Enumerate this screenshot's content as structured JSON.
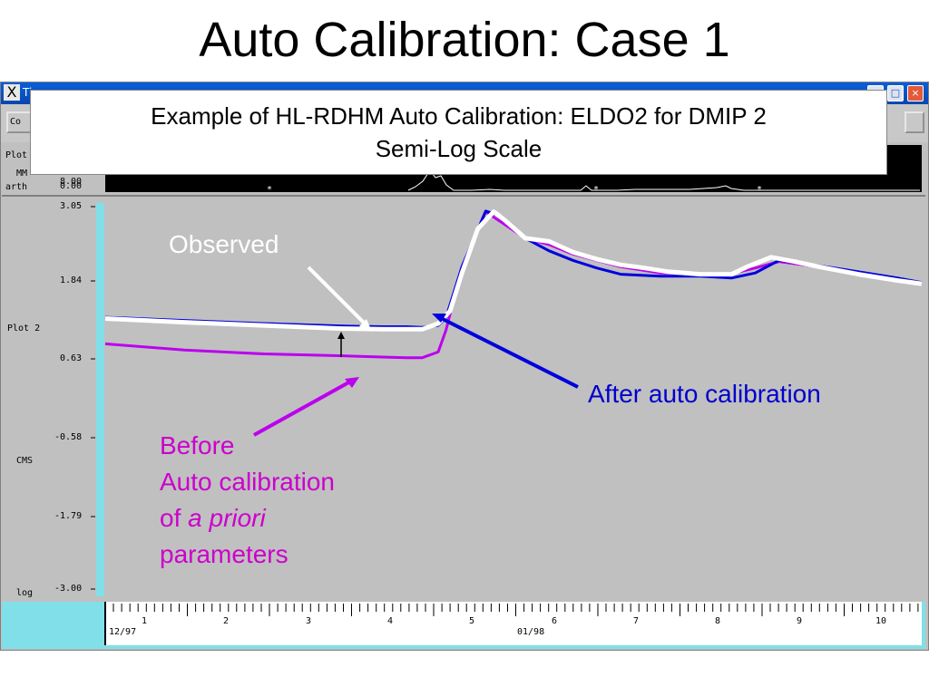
{
  "slide": {
    "title": "Auto Calibration: Case 1",
    "caption_line1": "Example of HL-RDHM Auto Calibration: ELDO2  for DMIP 2",
    "caption_line2": "Semi-Log Scale"
  },
  "window": {
    "title": "Ti",
    "toolbar_button": "Co",
    "minimize_glyph": "_",
    "maximize_glyph": "□",
    "close_glyph": "×"
  },
  "top_strip": {
    "label_line1": "Plot",
    "label_line2": "MM",
    "label_line3": "arth",
    "tick_top": "8.00",
    "tick_bottom": "0.00"
  },
  "plot": {
    "label": "Plot 2",
    "units": "CMS",
    "scale": "log",
    "yticks": [
      "3.05",
      "1.84",
      "0.63",
      "-0.58",
      "-1.79",
      "-3.00"
    ],
    "xticks": [
      "1",
      "2",
      "3",
      "4",
      "5",
      "6",
      "7",
      "8",
      "9",
      "10"
    ],
    "date_start": "12/97",
    "date_mid": "01/98"
  },
  "annotations": {
    "observed": "Observed",
    "after": "After auto calibration",
    "before_line1": "Before",
    "before_line2": "Auto calibration",
    "before_line3a": "of ",
    "before_line3b": "a priori",
    "before_line4": "parameters"
  },
  "colors": {
    "observed": "#ffffff",
    "after": "#0000dd",
    "before": "#bb00ee",
    "plot_bg": "#c0c0c0",
    "cyan_bar": "#80dfe8"
  },
  "chart_data": {
    "type": "line",
    "ylabel": "CMS",
    "xlim": [
      0,
      10.3
    ],
    "ylim": [
      -3.0,
      3.05
    ],
    "series": [
      {
        "name": "Observed",
        "x": [
          0,
          1,
          2,
          3,
          3.5,
          4.0,
          4.2,
          4.35,
          4.5,
          4.7,
          4.9,
          5.0,
          5.3,
          5.6,
          5.9,
          6.2,
          6.5,
          6.8,
          7.1,
          7.5,
          7.9,
          8.1,
          8.4,
          8.7,
          9.0,
          9.5,
          10.0,
          10.3
        ],
        "y": [
          1.28,
          1.22,
          1.17,
          1.12,
          1.11,
          1.11,
          1.2,
          1.4,
          2.0,
          2.7,
          2.97,
          2.88,
          2.55,
          2.5,
          2.33,
          2.22,
          2.13,
          2.08,
          2.02,
          1.98,
          1.98,
          2.1,
          2.25,
          2.18,
          2.1,
          1.98,
          1.88,
          1.83
        ]
      },
      {
        "name": "After auto calibration",
        "x": [
          0,
          1,
          2,
          3,
          3.5,
          3.8,
          4.0,
          4.2,
          4.3,
          4.5,
          4.8,
          5.0,
          5.3,
          5.6,
          5.9,
          6.2,
          6.5,
          7.0,
          7.5,
          7.9,
          8.2,
          8.5,
          8.8,
          9.2,
          9.6,
          10.0,
          10.3
        ],
        "y": [
          1.3,
          1.25,
          1.2,
          1.16,
          1.15,
          1.15,
          1.14,
          1.17,
          1.3,
          2.1,
          2.98,
          2.9,
          2.55,
          2.35,
          2.2,
          2.08,
          1.98,
          1.95,
          1.95,
          1.92,
          2.0,
          2.2,
          2.15,
          2.08,
          2.0,
          1.92,
          1.85
        ]
      },
      {
        "name": "Before Auto calibration of a priori parameters",
        "x": [
          0,
          1,
          2,
          3,
          3.5,
          3.8,
          4.0,
          4.2,
          4.3,
          4.5,
          4.8,
          5.0,
          5.3,
          5.6,
          5.9,
          6.2,
          6.5,
          7.0,
          7.5,
          7.9,
          8.2,
          8.5,
          8.8,
          9.2,
          9.6,
          10.0,
          10.3
        ],
        "y": [
          0.88,
          0.78,
          0.72,
          0.69,
          0.67,
          0.66,
          0.66,
          0.75,
          1.1,
          2.1,
          2.97,
          2.8,
          2.55,
          2.45,
          2.3,
          2.2,
          2.1,
          2.0,
          1.99,
          1.99,
          2.08,
          2.18,
          2.13,
          2.07,
          1.98,
          1.9,
          1.82
        ]
      }
    ],
    "grid": false
  }
}
